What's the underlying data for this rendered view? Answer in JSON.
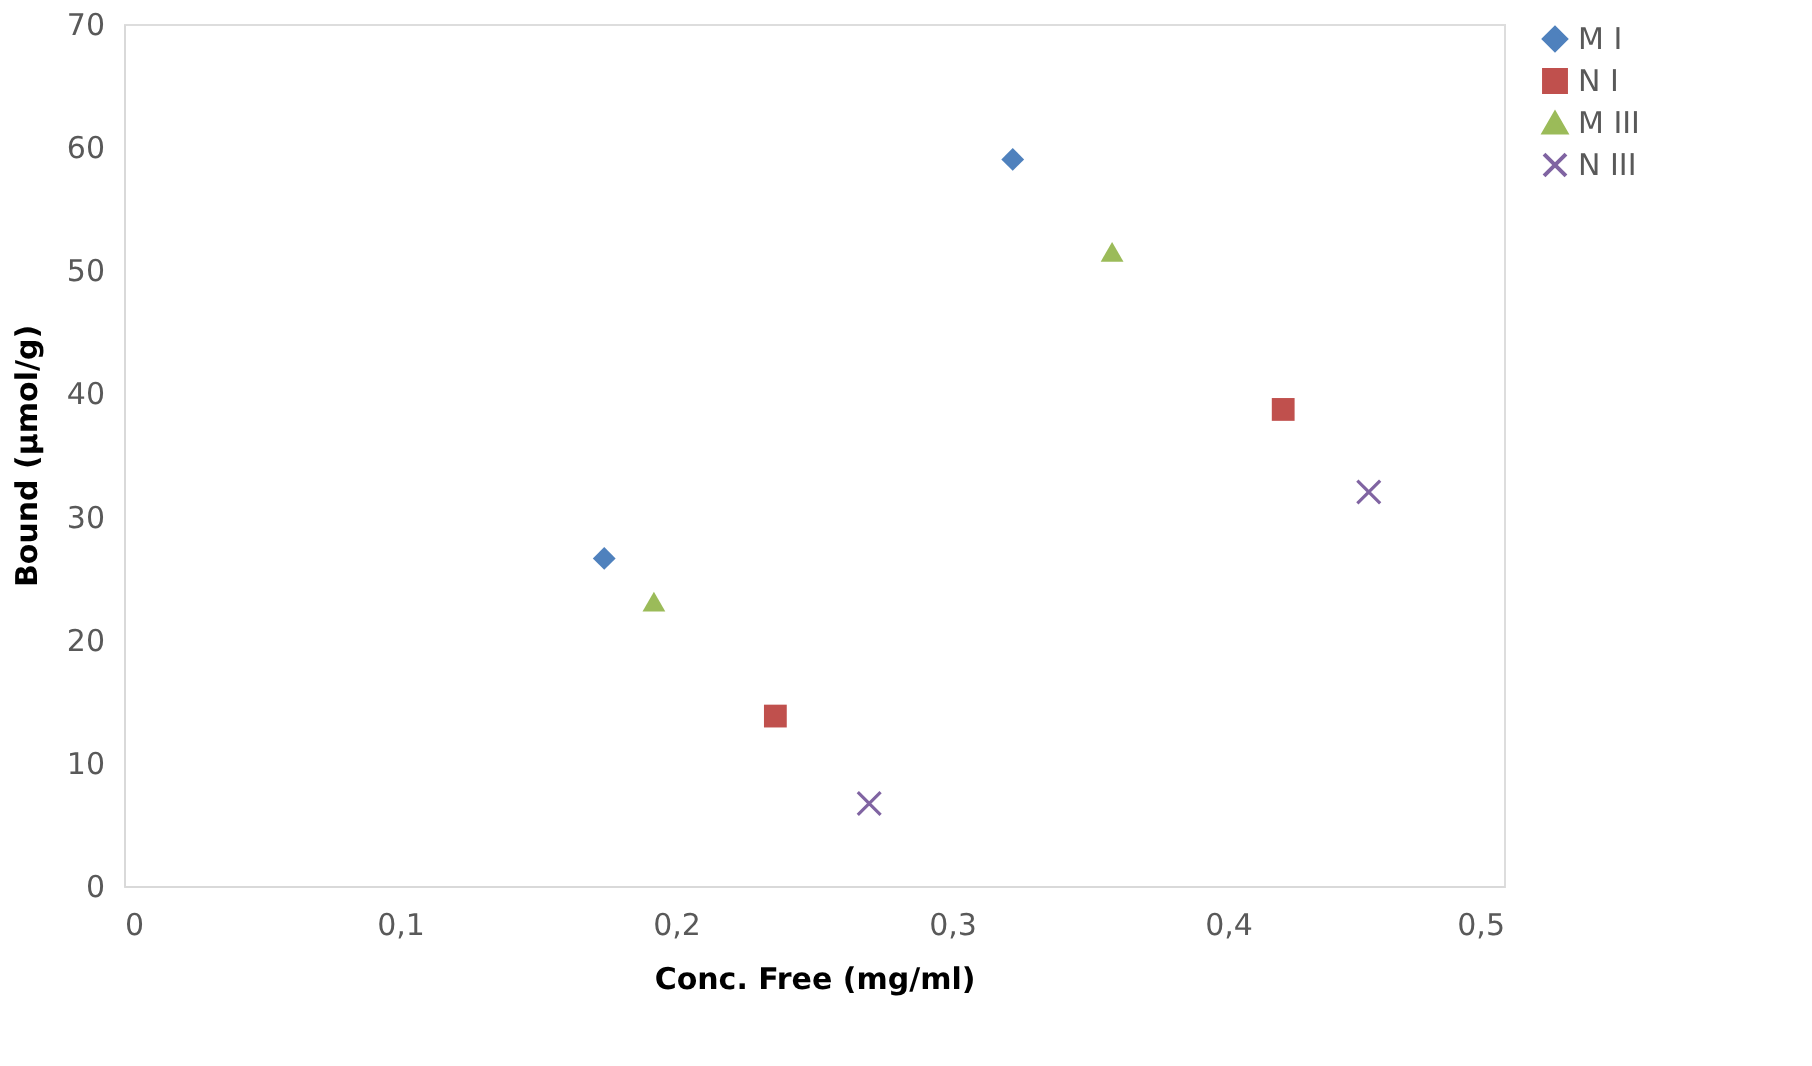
{
  "chart_data": {
    "type": "scatter",
    "xlabel": "Conc. Free (mg/ml)",
    "ylabel": "Bound (µmol/g)",
    "xlim": [
      0,
      0.5
    ],
    "xticks": [
      0,
      {
        "value": 0.1,
        "label": "0,1"
      },
      {
        "value": 0.2,
        "label": "0,2"
      },
      {
        "value": 0.3,
        "label": "0,3"
      },
      {
        "value": 0.4,
        "label": "0,4"
      },
      {
        "value": 0.5,
        "label": "0,5"
      }
    ],
    "ylim": [
      0,
      70
    ],
    "yticks": [
      0,
      10,
      20,
      30,
      40,
      50,
      60,
      70
    ],
    "grid": false,
    "legend": "right",
    "series": [
      {
        "name": "M I",
        "color": "#4f81bd",
        "marker": "diamond",
        "x": [
          0.174,
          0.322
        ],
        "values": [
          26.6,
          59.0
        ]
      },
      {
        "name": "N I",
        "color": "#c0504d",
        "marker": "square",
        "x": [
          0.236,
          0.42
        ],
        "values": [
          13.8,
          38.7
        ]
      },
      {
        "name": "M III",
        "color": "#9bbb59",
        "marker": "triangle",
        "x": [
          0.192,
          0.358
        ],
        "values": [
          23.1,
          51.5
        ]
      },
      {
        "name": "N III",
        "color": "#8064a2",
        "marker": "cross",
        "x": [
          0.27,
          0.451
        ],
        "values": [
          6.7,
          32.0
        ]
      }
    ]
  }
}
